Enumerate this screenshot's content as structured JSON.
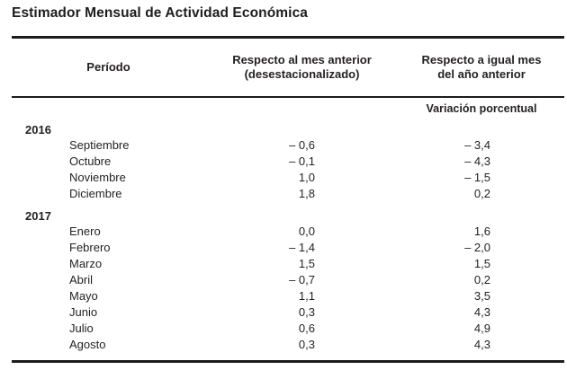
{
  "title": "Estimador Mensual de Actividad Económica",
  "colors": {
    "text": "#231f20",
    "rule": "#1c1c1e",
    "background": "#ffffff"
  },
  "table": {
    "headers": {
      "period": "Período",
      "mom_line1": "Respecto al mes anterior",
      "mom_line2": "(desestacionalizado)",
      "yoy_line1": "Respecto a igual mes",
      "yoy_line2": "del año anterior"
    },
    "subheader": "Variación porcentual",
    "rows": [
      {
        "type": "year",
        "label": "2016",
        "mom": "",
        "yoy": ""
      },
      {
        "type": "month",
        "label": "Septiembre",
        "mom": "– 0,6",
        "yoy": "– 3,4"
      },
      {
        "type": "month",
        "label": "Octubre",
        "mom": "– 0,1",
        "yoy": "– 4,3"
      },
      {
        "type": "month",
        "label": "Noviembre",
        "mom": "1,0",
        "yoy": "– 1,5"
      },
      {
        "type": "month",
        "label": "Diciembre",
        "mom": "1,8",
        "yoy": "0,2"
      },
      {
        "type": "year",
        "label": "2017",
        "mom": "",
        "yoy": ""
      },
      {
        "type": "month",
        "label": "Enero",
        "mom": "0,0",
        "yoy": "1,6"
      },
      {
        "type": "month",
        "label": "Febrero",
        "mom": "– 1,4",
        "yoy": "– 2,0"
      },
      {
        "type": "month",
        "label": "Marzo",
        "mom": "1,5",
        "yoy": "1,5"
      },
      {
        "type": "month",
        "label": "Abril",
        "mom": "– 0,7",
        "yoy": "0,2"
      },
      {
        "type": "month",
        "label": "Mayo",
        "mom": "1,1",
        "yoy": "3,5"
      },
      {
        "type": "month",
        "label": "Junio",
        "mom": "0,3",
        "yoy": "4,3"
      },
      {
        "type": "month",
        "label": "Julio",
        "mom": "0,6",
        "yoy": "4,9"
      },
      {
        "type": "month",
        "label": "Agosto",
        "mom": "0,3",
        "yoy": "4,3"
      }
    ]
  }
}
